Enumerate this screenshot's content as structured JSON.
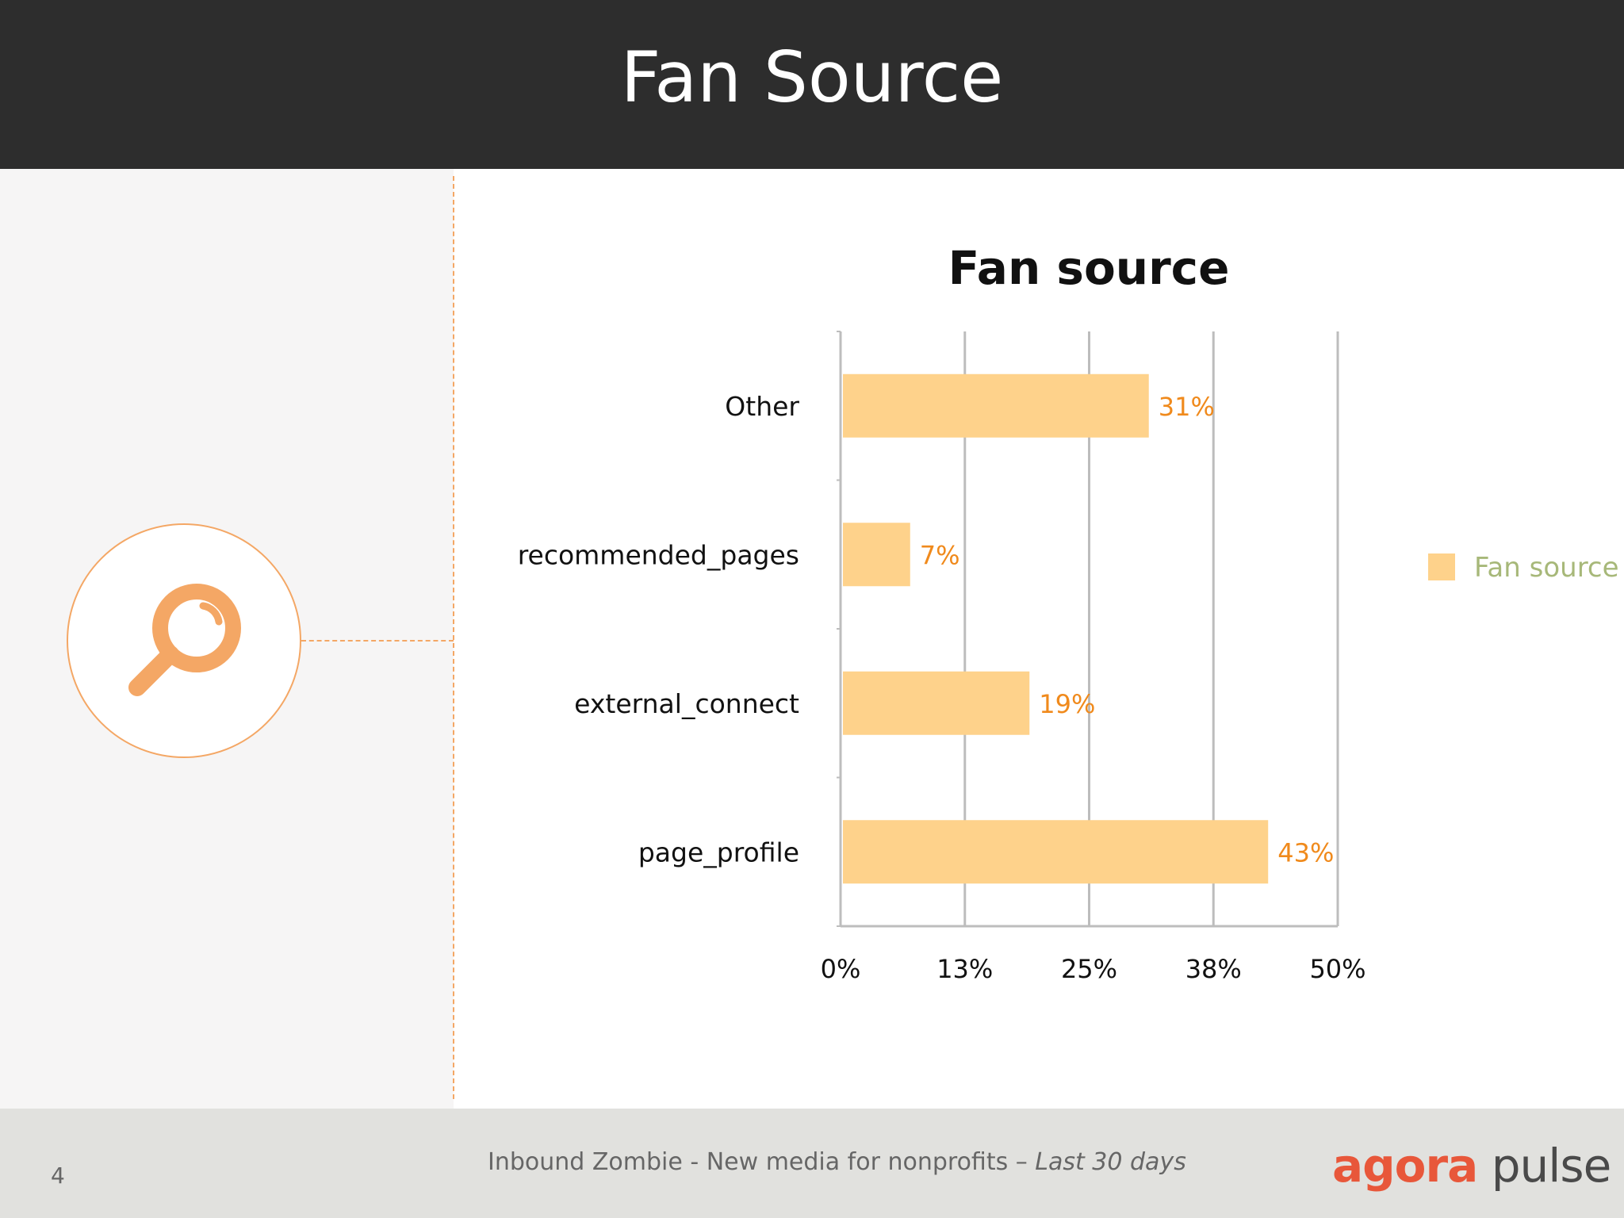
{
  "slide": {
    "title": "Fan Source",
    "page_number": "4"
  },
  "footer": {
    "text_main": "Inbound Zombie - New media for nonprofits – ",
    "text_italic": "Last 30 days",
    "logo_part1": "agora",
    "logo_part2": "pulse"
  },
  "colors": {
    "accent": "#f4a765",
    "bar": "#fed28b",
    "data_label": "#f08a1c",
    "legend_text": "#a7b879",
    "header_bg": "#2d2d2d"
  },
  "icon": "search-icon",
  "chart_data": {
    "type": "bar",
    "orientation": "horizontal",
    "title": "Fan source",
    "categories": [
      "Other",
      "recommended_pages",
      "external_connect",
      "page_profile"
    ],
    "series": [
      {
        "name": "Fan source",
        "values": [
          31,
          7,
          19,
          43
        ]
      }
    ],
    "data_labels": [
      "31%",
      "7%",
      "19%",
      "43%"
    ],
    "x_ticks": [
      0,
      12.5,
      25,
      37.5,
      50
    ],
    "x_tick_labels": [
      "0%",
      "13%",
      "25%",
      "38%",
      "50%"
    ],
    "xlim": [
      0,
      50
    ],
    "xlabel": "",
    "ylabel": "",
    "grid": true,
    "legend_position": "right"
  }
}
